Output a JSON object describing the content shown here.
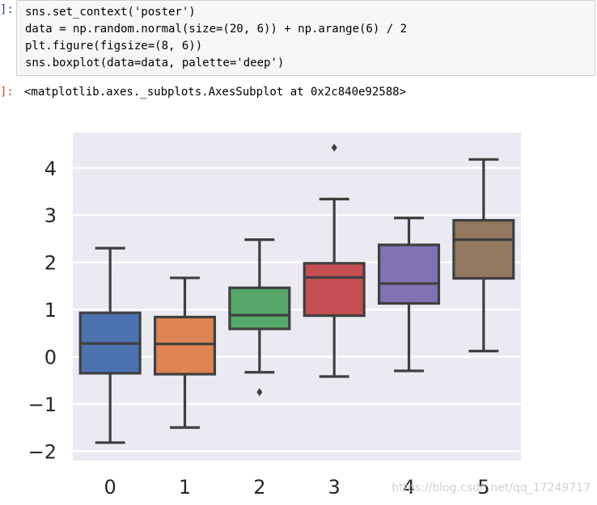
{
  "notebook": {
    "prompt_in": "]:",
    "prompt_out": "]:",
    "code_lines": [
      "sns.set_context('poster')",
      "data = np.random.normal(size=(20, 6)) + np.arange(6) / 2",
      "plt.figure(figsize=(8, 6))",
      "sns.boxplot(data=data, palette='deep')"
    ],
    "output_text": "<matplotlib.axes._subplots.AxesSubplot at 0x2c840e92588>",
    "watermark": "https://blog.csdn.net/qq_17249717"
  },
  "chart_data": {
    "type": "boxplot",
    "title": "",
    "xlabel": "",
    "ylabel": "",
    "categories": [
      "0",
      "1",
      "2",
      "3",
      "4",
      "5"
    ],
    "ylim": [
      -2.2,
      4.75
    ],
    "yticks": [
      -2,
      -1,
      0,
      1,
      2,
      3,
      4
    ],
    "ytick_labels": [
      "−2",
      "−1",
      "0",
      "1",
      "2",
      "3",
      "4"
    ],
    "grid": true,
    "background": "#eaeaf2",
    "line_color": "#3f3f3f",
    "palette": [
      "#4c72b0",
      "#dd8452",
      "#55a868",
      "#c44e52",
      "#8172b3",
      "#937860"
    ],
    "boxes": [
      {
        "category": "0",
        "whislo": -1.82,
        "q1": -0.35,
        "med": 0.28,
        "q3": 0.93,
        "whishi": 2.3,
        "fliers": []
      },
      {
        "category": "1",
        "whislo": -1.5,
        "q1": -0.37,
        "med": 0.27,
        "q3": 0.84,
        "whishi": 1.67,
        "fliers": []
      },
      {
        "category": "2",
        "whislo": -0.33,
        "q1": 0.59,
        "med": 0.88,
        "q3": 1.46,
        "whishi": 2.48,
        "fliers": [
          -0.75
        ]
      },
      {
        "category": "3",
        "whislo": -0.42,
        "q1": 0.87,
        "med": 1.68,
        "q3": 1.98,
        "whishi": 3.34,
        "fliers": [
          4.43
        ]
      },
      {
        "category": "4",
        "whislo": -0.3,
        "q1": 1.13,
        "med": 1.55,
        "q3": 2.37,
        "whishi": 2.94,
        "fliers": []
      },
      {
        "category": "5",
        "whislo": 0.12,
        "q1": 1.66,
        "med": 2.48,
        "q3": 2.89,
        "whishi": 4.18,
        "fliers": []
      }
    ]
  }
}
